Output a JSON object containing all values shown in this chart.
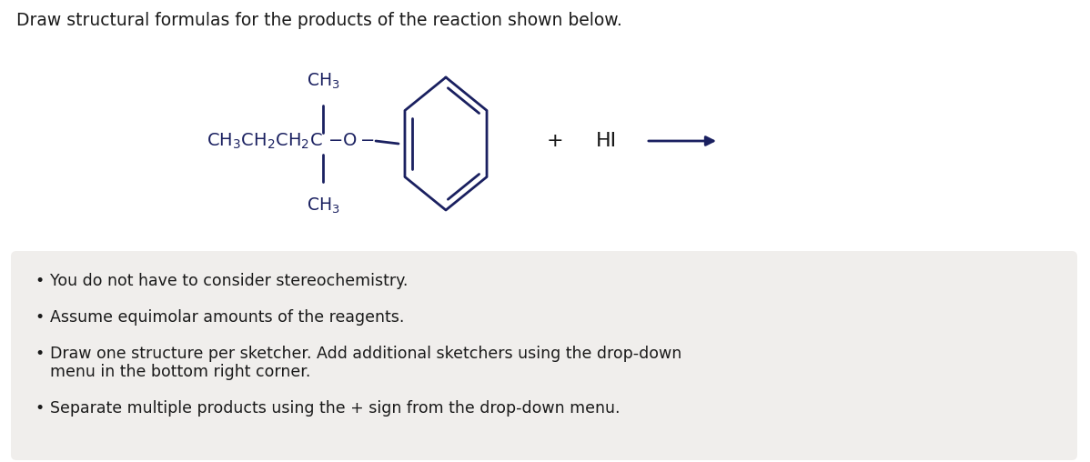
{
  "title": "Draw structural formulas for the products of the reaction shown below.",
  "title_fontsize": 13.5,
  "title_color": "#1a1a1a",
  "background_color": "#ffffff",
  "bullet_box_color": "#f0eeec",
  "bullet_points_line1": "You do not have to consider stereochemistry.",
  "bullet_points_line2": "Assume equimolar amounts of the reagents.",
  "bullet_points_line3a": "Draw one structure per sketcher. Add additional sketchers using the drop-down",
  "bullet_points_line3b": "menu in the bottom right corner.",
  "bullet_points_line4": "Separate multiple products using the + sign from the drop-down menu.",
  "bullet_fontsize": 12.5,
  "text_color": "#1a1a1a",
  "structure_color": "#1a2060",
  "formula_fontsize": 14,
  "plus_color": "#1a1a1a",
  "HI_color": "#1a1a1a",
  "arrow_color": "#1a2060"
}
